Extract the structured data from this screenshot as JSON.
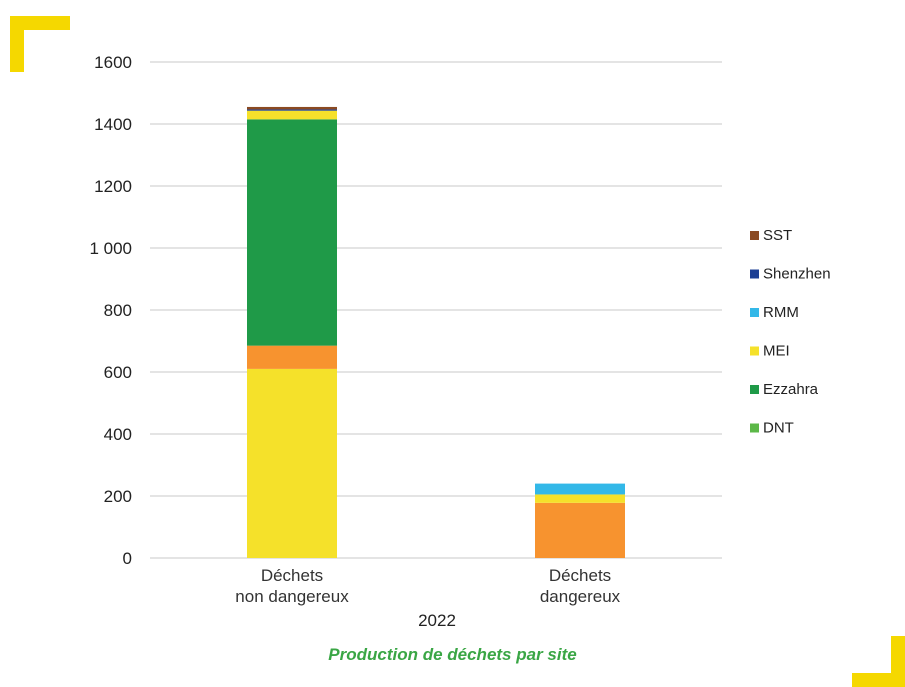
{
  "chart_data": {
    "type": "bar",
    "stacked": true,
    "categories": [
      "Déchets\nnon dangereux",
      "Déchets\ndangereux"
    ],
    "xlabel": "2022",
    "ylabel": "",
    "ylim": [
      0,
      1600
    ],
    "yticks": [
      0,
      200,
      400,
      600,
      800,
      1000,
      1200,
      1400,
      1600
    ],
    "grid": true,
    "legend_position": "right",
    "series": [
      {
        "name": "DNT",
        "color": "#5cb848",
        "values": [
          0,
          0
        ]
      },
      {
        "name": "Ezzahra",
        "color": "#1f9a48",
        "values": [
          730,
          0
        ]
      },
      {
        "name": "MEI",
        "color": "#f5e12a",
        "values": [
          610,
          27
        ]
      },
      {
        "name": "RMM",
        "color": "#33b8e8",
        "values": [
          0,
          35
        ]
      },
      {
        "name": "Shenzhen",
        "color": "#1c3f94",
        "values": [
          4,
          0
        ]
      },
      {
        "name": "SST",
        "color": "#8b4a22",
        "values": [
          8,
          0
        ]
      }
    ],
    "extra_stack_segments": [
      {
        "category_index": 0,
        "after_series": "MEI",
        "color": "#f7932f",
        "values_note": "orange",
        "value": 75
      },
      {
        "category_index": 1,
        "after_series": "DNT",
        "color": "#f7932f",
        "values_note": "orange",
        "value": 178
      },
      {
        "category_index": 0,
        "after_series": "Ezzahra",
        "color": "#f5e12a",
        "value": 28
      }
    ],
    "legend": [
      "SST",
      "Shenzhen",
      "RMM",
      "MEI",
      "Ezzahra",
      "DNT"
    ]
  },
  "caption": "Production de déchets par site",
  "colors": {
    "accent_yellow": "#f5d800",
    "caption_green": "#3aa645",
    "grid": "#c8c8c8"
  }
}
